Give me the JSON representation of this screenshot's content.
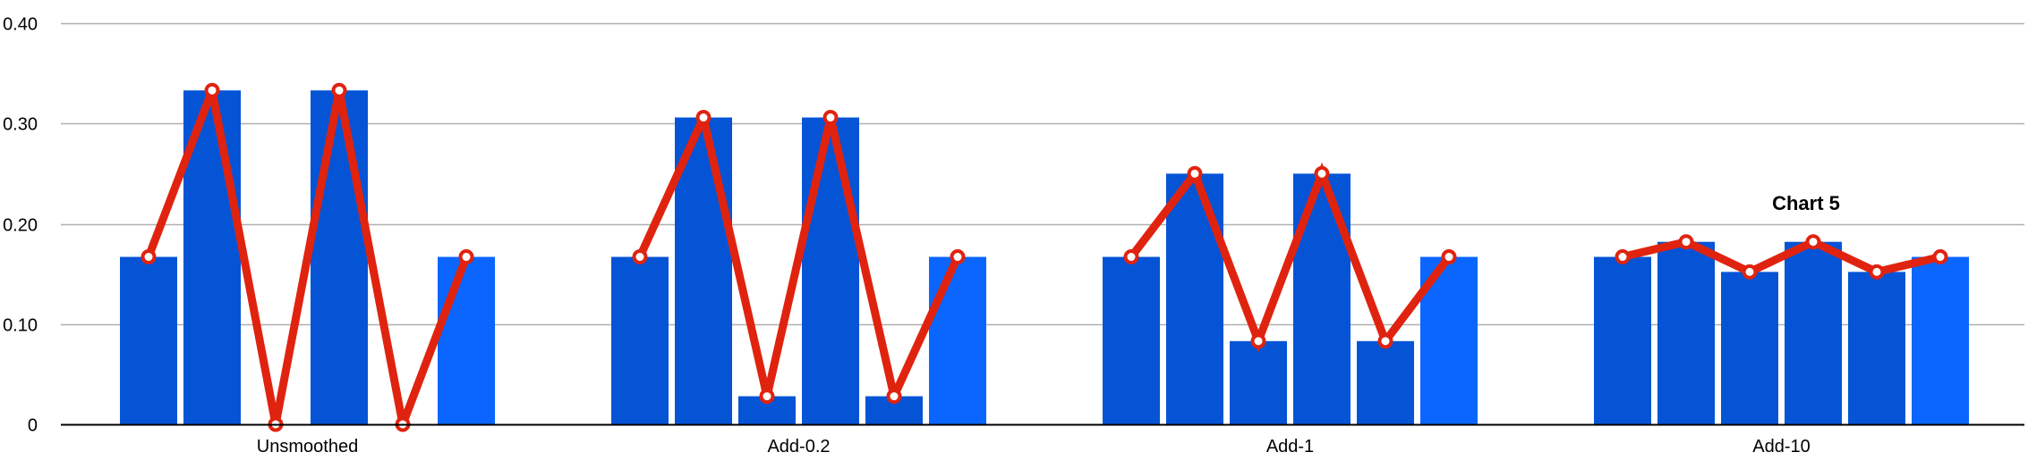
{
  "chart_data": {
    "type": "bar",
    "title": "",
    "annotations": [
      "Chart 5"
    ],
    "xlabel": "",
    "ylabel": "",
    "ylim": [
      0,
      0.4
    ],
    "yticks": [
      0,
      0.1,
      0.2,
      0.3,
      0.4
    ],
    "ytick_labels": [
      "0",
      "0.10",
      "0.20",
      "0.30",
      "0.40"
    ],
    "grid": true,
    "legend": "none",
    "categories": [
      "Unsmoothed",
      "Add-0.2",
      "Add-1",
      "Add-10"
    ],
    "bars_per_category": 6,
    "bar_values": [
      [
        0.167,
        0.333,
        0.0,
        0.333,
        0.0,
        0.167
      ],
      [
        0.167,
        0.306,
        0.028,
        0.306,
        0.028,
        0.167
      ],
      [
        0.167,
        0.25,
        0.083,
        0.25,
        0.083,
        0.167
      ],
      [
        0.167,
        0.182,
        0.152,
        0.182,
        0.152,
        0.167
      ]
    ],
    "line_values": [
      [
        0.167,
        0.333,
        0.0,
        0.333,
        0.0,
        0.167
      ],
      [
        0.167,
        0.306,
        0.028,
        0.306,
        0.028,
        0.167
      ],
      [
        0.167,
        0.25,
        0.083,
        0.25,
        0.083,
        0.167
      ],
      [
        0.167,
        0.182,
        0.152,
        0.182,
        0.152,
        0.167
      ]
    ],
    "colors": {
      "bar": "#0554d6",
      "bar_edge": "#0a66ff",
      "line": "#e0230f",
      "marker_fill": "#ffffff",
      "grid": "#b0b0b0",
      "axis": "#000000"
    }
  }
}
